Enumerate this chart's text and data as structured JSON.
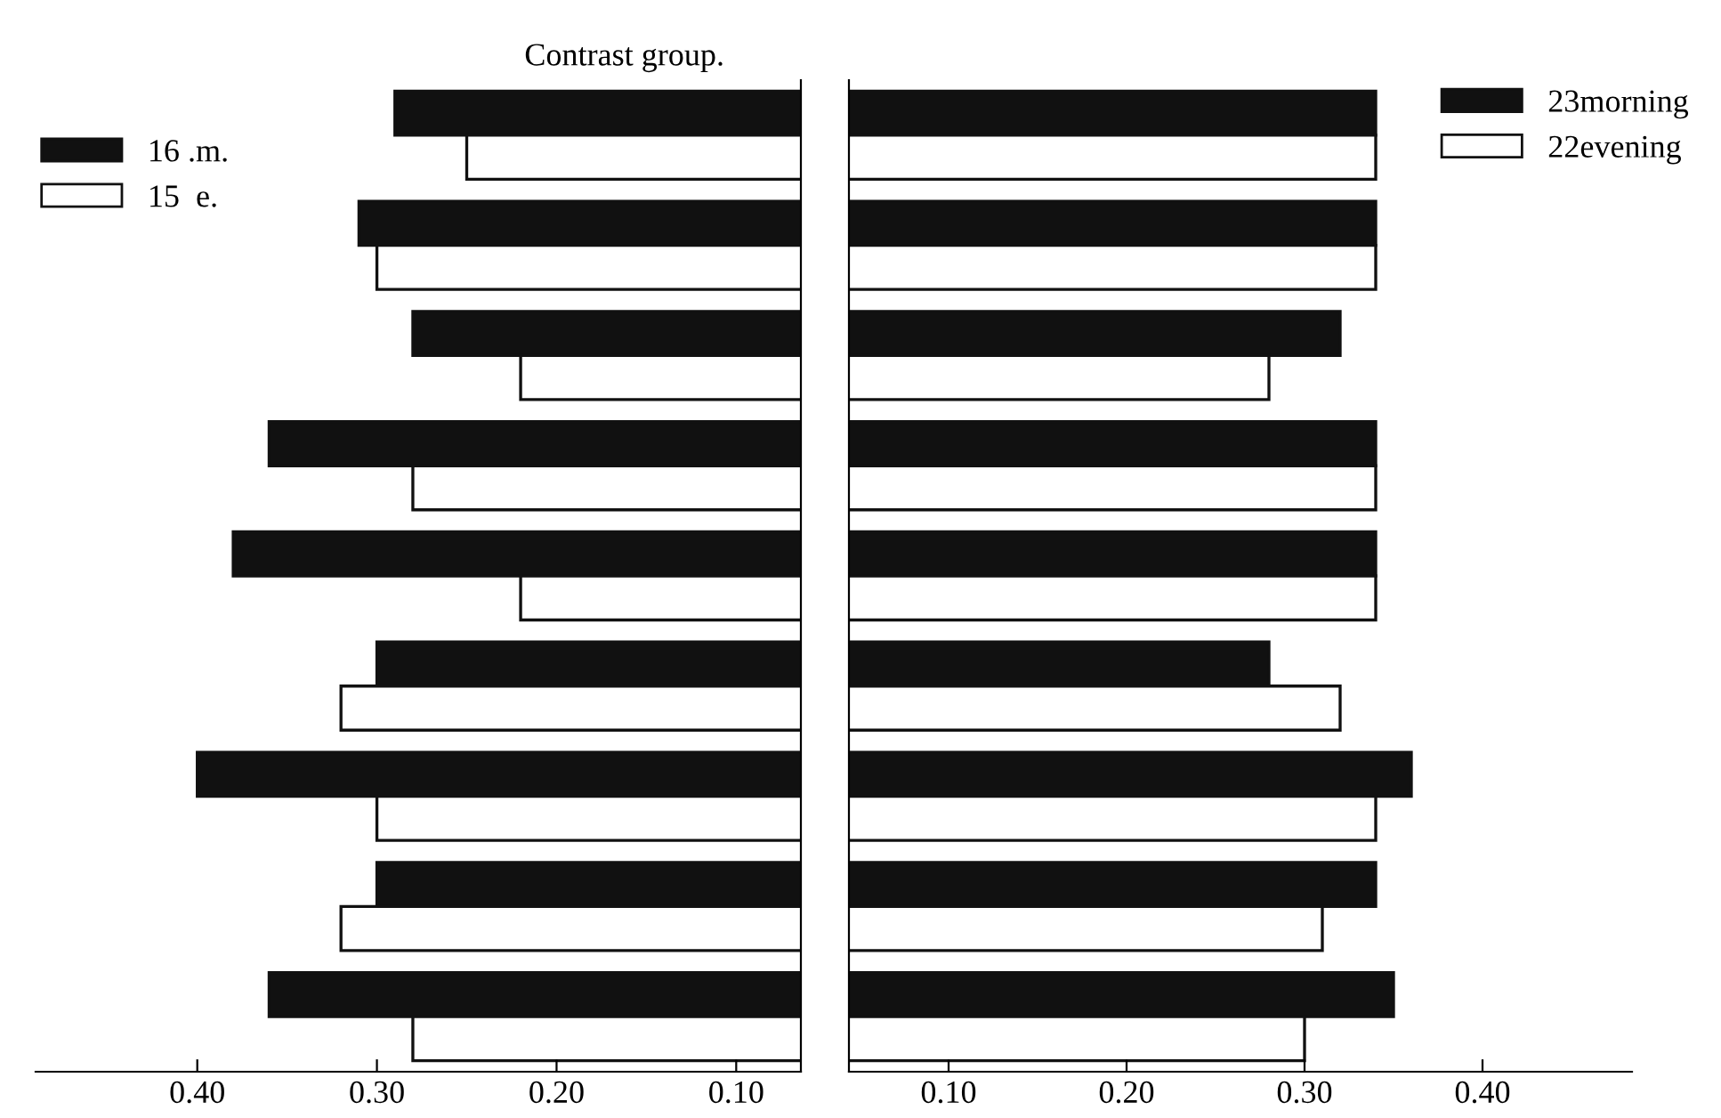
{
  "chart_data": [
    {
      "type": "bar",
      "orientation": "horizontal",
      "title": "Contrast group.",
      "categories": [
        null,
        null,
        null,
        null,
        null,
        null,
        null,
        null,
        null
      ],
      "xlim": [
        0.49,
        0.064
      ],
      "xticks": [
        {
          "value": 0.4,
          "label": "0.40"
        },
        {
          "value": 0.3,
          "label": "0.30"
        },
        {
          "value": 0.2,
          "label": "0.20"
        },
        {
          "value": 0.1,
          "label": "0.10"
        }
      ],
      "tick_labels": "x",
      "grid": false,
      "legend": "top left",
      "series": [
        {
          "name": "16 .m.",
          "color": "#111111",
          "values": [
            0.29,
            0.31,
            0.28,
            0.36,
            0.38,
            0.3,
            0.4,
            0.3,
            0.36
          ]
        },
        {
          "name": "15  e.",
          "color": "#ffffff",
          "values": [
            0.25,
            0.3,
            0.22,
            0.28,
            0.22,
            0.32,
            0.3,
            0.32,
            0.28
          ]
        }
      ]
    },
    {
      "type": "bar",
      "orientation": "horizontal",
      "categories": [
        null,
        null,
        null,
        null,
        null,
        null,
        null,
        null,
        null
      ],
      "xlim": [
        0.044,
        0.484
      ],
      "xticks": [
        {
          "value": 0.1,
          "label": "0.10"
        },
        {
          "value": 0.2,
          "label": "0.20"
        },
        {
          "value": 0.3,
          "label": "0.30"
        },
        {
          "value": 0.4,
          "label": "0.40"
        }
      ],
      "tick_labels": "x",
      "grid": false,
      "legend": "top right",
      "series": [
        {
          "name": "23morning",
          "color": "#111111",
          "values": [
            0.34,
            0.34,
            0.32,
            0.34,
            0.34,
            0.28,
            0.36,
            0.34,
            0.35
          ]
        },
        {
          "name": "22evening",
          "color": "#ffffff",
          "values": [
            0.34,
            0.34,
            0.28,
            0.34,
            0.34,
            0.32,
            0.34,
            0.31,
            0.3
          ]
        }
      ]
    }
  ]
}
